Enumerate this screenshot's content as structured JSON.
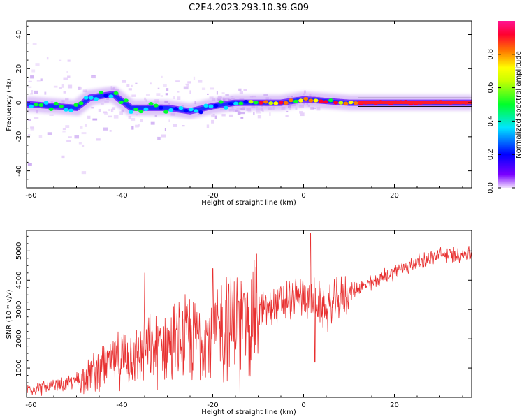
{
  "title": "C2E4.2023.293.10.39.G09",
  "chart_data": [
    {
      "type": "heatmap",
      "xlabel": "Height of straight line (km)",
      "ylabel": "Frequency (Hz)",
      "xlim": [
        -61,
        37
      ],
      "ylim": [
        -50,
        48
      ],
      "xticks": [
        -60,
        -40,
        -20,
        0,
        20
      ],
      "yticks": [
        -40,
        -20,
        0,
        20,
        40
      ],
      "colorbar": {
        "label": "Normalized spectral amplitude",
        "range": [
          0,
          1
        ],
        "ticks": [
          "0.0",
          "0.2",
          "0.4",
          "0.6",
          "0.8"
        ],
        "colormap": [
          "#f2e0ff",
          "#7a00ff",
          "#0000ff",
          "#00e5ff",
          "#00ff2a",
          "#c8ff00",
          "#ffff00",
          "#ff7800",
          "#ff0030",
          "#ff1493"
        ]
      },
      "ridge": [
        {
          "x": -60,
          "y": -1
        },
        {
          "x": -55,
          "y": -2
        },
        {
          "x": -50,
          "y": -3
        },
        {
          "x": -47,
          "y": 3
        },
        {
          "x": -42,
          "y": 5
        },
        {
          "x": -38,
          "y": -3
        },
        {
          "x": -30,
          "y": -3
        },
        {
          "x": -25,
          "y": -5
        },
        {
          "x": -20,
          "y": -2
        },
        {
          "x": -15,
          "y": 0
        },
        {
          "x": -10,
          "y": 0
        },
        {
          "x": -5,
          "y": 0
        },
        {
          "x": 0,
          "y": 2
        },
        {
          "x": 5,
          "y": 1
        },
        {
          "x": 10,
          "y": 0
        },
        {
          "x": 20,
          "y": 0
        },
        {
          "x": 37,
          "y": 0
        }
      ]
    },
    {
      "type": "line",
      "xlabel": "Height of straight line (km)",
      "ylabel": "SNR (10 * v/v)",
      "xlim": [
        -61,
        37
      ],
      "ylim": [
        0,
        5700
      ],
      "xticks": [
        -60,
        -40,
        -20,
        0,
        20
      ],
      "yticks": [
        1000,
        2000,
        3000,
        4000,
        5000
      ],
      "color": "#e83030",
      "trend": [
        {
          "x": -61,
          "y": 300
        },
        {
          "x": -55,
          "y": 350
        },
        {
          "x": -50,
          "y": 550
        },
        {
          "x": -45,
          "y": 1000
        },
        {
          "x": -40,
          "y": 1300
        },
        {
          "x": -35,
          "y": 1550
        },
        {
          "x": -30,
          "y": 1800
        },
        {
          "x": -25,
          "y": 2000
        },
        {
          "x": -20,
          "y": 2200
        },
        {
          "x": -15,
          "y": 2600
        },
        {
          "x": -10,
          "y": 2900
        },
        {
          "x": -5,
          "y": 3200
        },
        {
          "x": 0,
          "y": 3500
        },
        {
          "x": 5,
          "y": 3000
        },
        {
          "x": 10,
          "y": 3600
        },
        {
          "x": 15,
          "y": 3900
        },
        {
          "x": 20,
          "y": 4300
        },
        {
          "x": 25,
          "y": 4600
        },
        {
          "x": 30,
          "y": 4850
        },
        {
          "x": 37,
          "y": 4900
        }
      ],
      "spikes": [
        {
          "x": 1.5,
          "y": 5600
        },
        {
          "x": 2.5,
          "y": 1200
        },
        {
          "x": -35,
          "y": 4250
        },
        {
          "x": -14,
          "y": 150
        },
        {
          "x": -20,
          "y": 4400
        },
        {
          "x": -17,
          "y": 4100
        }
      ]
    }
  ]
}
